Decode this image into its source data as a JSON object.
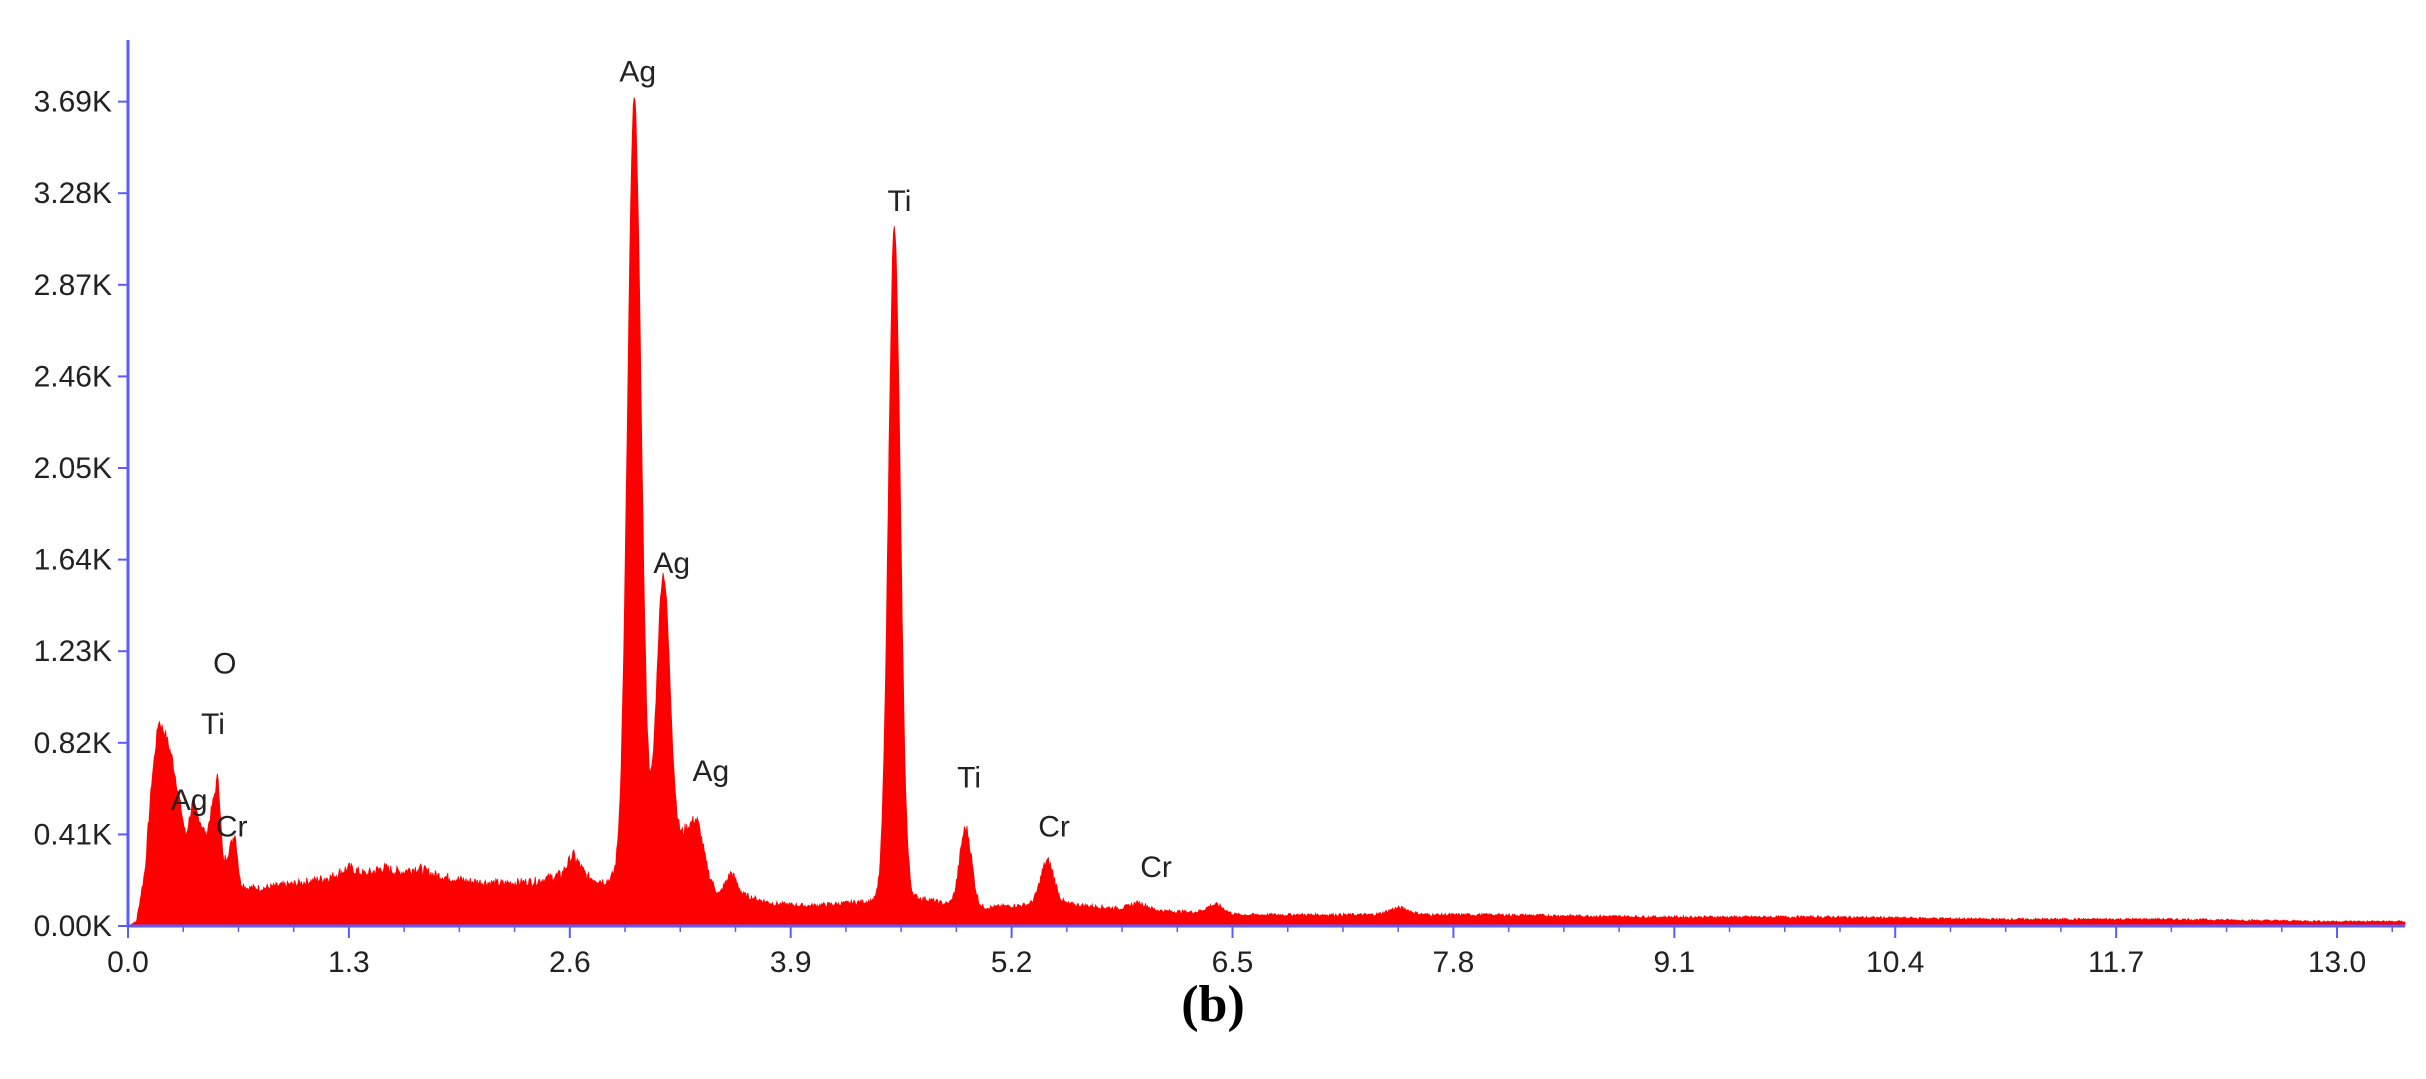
{
  "chart_data": {
    "type": "area",
    "title": "",
    "xlabel": "",
    "ylabel": "",
    "xlim": [
      0.0,
      13.4
    ],
    "ylim": [
      0.0,
      3.93
    ],
    "grid": false,
    "colors": {
      "fill": "#ff0000",
      "axis": "#5b5bff"
    },
    "y_ticks": [
      "0.00K",
      "0.41K",
      "0.82K",
      "1.23K",
      "1.64K",
      "2.05K",
      "2.46K",
      "2.87K",
      "3.28K",
      "3.69K"
    ],
    "x_ticks": [
      "0.0",
      "1.3",
      "2.6",
      "3.9",
      "5.2",
      "6.5",
      "7.8",
      "9.1",
      "10.4",
      "11.7",
      "13.0"
    ],
    "series": [
      {
        "baseline": [
          [
            0.0,
            0.0
          ],
          [
            0.05,
            0.02
          ],
          [
            0.1,
            0.25
          ],
          [
            0.14,
            0.65
          ],
          [
            0.18,
            0.92
          ],
          [
            0.22,
            0.86
          ],
          [
            0.26,
            0.75
          ],
          [
            0.3,
            0.58
          ],
          [
            0.34,
            0.4
          ],
          [
            0.38,
            0.55
          ],
          [
            0.42,
            0.48
          ],
          [
            0.46,
            0.4
          ],
          [
            0.5,
            0.55
          ],
          [
            0.53,
            0.68
          ],
          [
            0.56,
            0.28
          ],
          [
            0.6,
            0.35
          ],
          [
            0.63,
            0.42
          ],
          [
            0.66,
            0.2
          ],
          [
            0.7,
            0.17
          ],
          [
            0.8,
            0.17
          ],
          [
            1.0,
            0.19
          ],
          [
            1.2,
            0.22
          ],
          [
            1.3,
            0.26
          ],
          [
            1.4,
            0.23
          ],
          [
            1.5,
            0.26
          ],
          [
            1.6,
            0.24
          ],
          [
            1.7,
            0.26
          ],
          [
            1.8,
            0.23
          ],
          [
            2.0,
            0.2
          ],
          [
            2.2,
            0.19
          ],
          [
            2.4,
            0.2
          ],
          [
            2.55,
            0.23
          ],
          [
            2.62,
            0.32
          ],
          [
            2.7,
            0.22
          ],
          [
            2.8,
            0.2
          ],
          [
            3.0,
            0.22
          ],
          [
            3.2,
            0.32
          ],
          [
            3.28,
            0.4
          ],
          [
            3.35,
            0.32
          ],
          [
            3.4,
            0.22
          ],
          [
            3.48,
            0.14
          ],
          [
            3.55,
            0.24
          ],
          [
            3.62,
            0.14
          ],
          [
            3.7,
            0.12
          ],
          [
            3.8,
            0.1
          ],
          [
            4.0,
            0.09
          ],
          [
            4.2,
            0.1
          ],
          [
            4.35,
            0.11
          ],
          [
            4.6,
            0.13
          ],
          [
            4.7,
            0.12
          ],
          [
            4.8,
            0.1
          ],
          [
            5.0,
            0.08
          ],
          [
            5.2,
            0.09
          ],
          [
            5.5,
            0.1
          ],
          [
            5.8,
            0.08
          ],
          [
            6.0,
            0.07
          ],
          [
            6.3,
            0.06
          ],
          [
            6.5,
            0.05
          ],
          [
            7.0,
            0.05
          ],
          [
            7.5,
            0.05
          ],
          [
            8.0,
            0.05
          ],
          [
            9.0,
            0.04
          ],
          [
            10.0,
            0.04
          ],
          [
            11.0,
            0.03
          ],
          [
            12.0,
            0.03
          ],
          [
            13.0,
            0.02
          ],
          [
            13.4,
            0.02
          ]
        ],
        "peaks": [
          {
            "center": 2.98,
            "height": 3.48,
            "sigma": 0.04
          },
          {
            "center": 3.15,
            "height": 1.28,
            "sigma": 0.04
          },
          {
            "center": 3.35,
            "height": 0.15,
            "sigma": 0.04
          },
          {
            "center": 4.51,
            "height": 3.0,
            "sigma": 0.035
          },
          {
            "center": 4.93,
            "height": 0.35,
            "sigma": 0.035
          },
          {
            "center": 5.41,
            "height": 0.19,
            "sigma": 0.04
          },
          {
            "center": 5.95,
            "height": 0.03,
            "sigma": 0.05
          },
          {
            "center": 6.4,
            "height": 0.04,
            "sigma": 0.05
          },
          {
            "center": 7.48,
            "height": 0.03,
            "sigma": 0.06
          }
        ]
      }
    ],
    "annotations": [
      {
        "text": "Ag",
        "x": 3.0,
        "y": 3.78
      },
      {
        "text": "Ti",
        "x": 4.54,
        "y": 3.2
      },
      {
        "text": "Ag",
        "x": 3.2,
        "y": 1.58
      },
      {
        "text": "Ag",
        "x": 3.43,
        "y": 0.65
      },
      {
        "text": "O",
        "x": 0.57,
        "y": 1.13
      },
      {
        "text": "Ti",
        "x": 0.5,
        "y": 0.86
      },
      {
        "text": "Ag",
        "x": 0.36,
        "y": 0.52
      },
      {
        "text": "Cr",
        "x": 0.61,
        "y": 0.4
      },
      {
        "text": "Ti",
        "x": 4.95,
        "y": 0.62
      },
      {
        "text": "Cr",
        "x": 5.45,
        "y": 0.4
      },
      {
        "text": "Cr",
        "x": 6.05,
        "y": 0.22
      }
    ]
  },
  "panel_label": "(b)"
}
